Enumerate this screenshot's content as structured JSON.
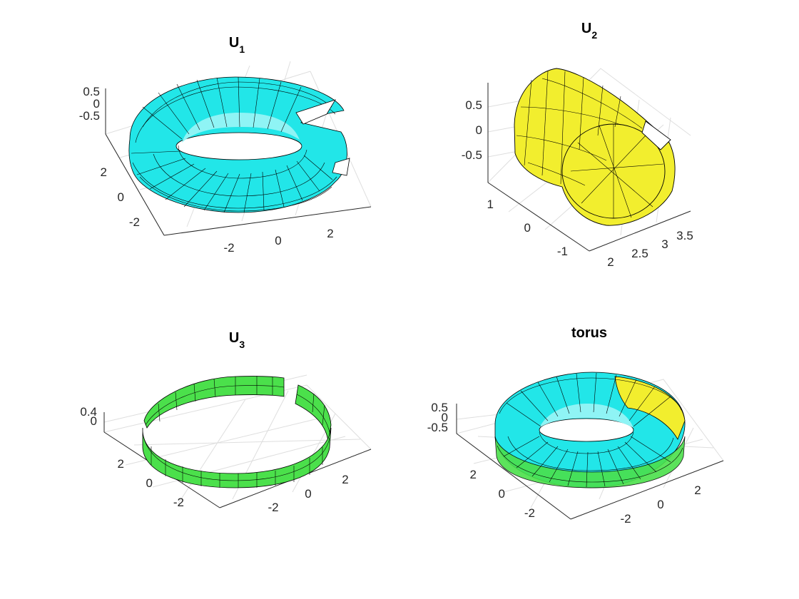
{
  "chart_data": [
    {
      "type": "surface3d",
      "title": "U",
      "title_subscript": "1",
      "surface_color": "#22e6e8",
      "x_ticks": [
        "-2",
        "0",
        "2"
      ],
      "y_ticks": [
        "-2",
        "0",
        "2"
      ],
      "z_ticks": [
        "0.5",
        "0",
        "-0.5"
      ],
      "shape": "torus with small wedge removed near the front-right",
      "grid": true
    },
    {
      "type": "surface3d",
      "title": "U",
      "title_subscript": "2",
      "surface_color": "#f2ee2e",
      "x_ticks": [
        "2",
        "2.5",
        "3",
        "3.5"
      ],
      "y_ticks": [
        "-1",
        "0",
        "1"
      ],
      "z_ticks": [
        "0.5",
        "0",
        "-0.5"
      ],
      "shape": "curved tube segment of torus",
      "grid": true
    },
    {
      "type": "surface3d",
      "title": "U",
      "title_subscript": "3",
      "surface_color": "#4be04b",
      "x_ticks": [
        "-2",
        "0",
        "2"
      ],
      "y_ticks": [
        "-2",
        "0",
        "2"
      ],
      "z_ticks": [
        "0.4",
        "0"
      ],
      "shape": "thin ring band with a gap near the back-right",
      "grid": true
    },
    {
      "type": "surface3d",
      "title": "torus",
      "title_subscript": "",
      "surface_colors": [
        "#22e6e8",
        "#f2ee2e",
        "#4be04b"
      ],
      "x_ticks": [
        "-2",
        "0",
        "2"
      ],
      "y_ticks": [
        "-2",
        "0",
        "2"
      ],
      "z_ticks": [
        "0.5",
        "0",
        "-0.5"
      ],
      "shape": "full torus combining U1, U2 and U3 patches",
      "grid": true
    }
  ]
}
